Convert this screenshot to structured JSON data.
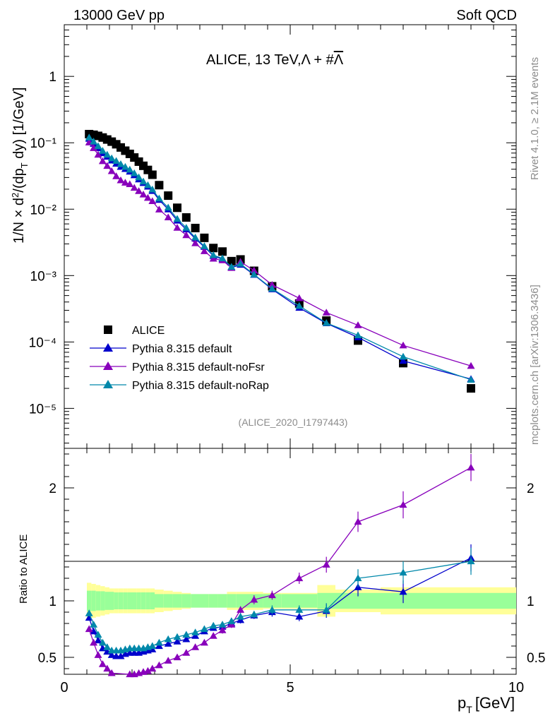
{
  "header": {
    "left": "13000 GeV pp",
    "right": "Soft QCD"
  },
  "side_text": {
    "rivet": "Rivet 4.1.0, ≥ 2.1M events",
    "mcplots": "mcplots.cern.ch [arXiv:1306.3436]"
  },
  "chart_data": {
    "type": "scatter",
    "title": "ALICE, 13 TeV,Λ + #Λ̅",
    "title_plain": "ALICE, 13 TeV,Λ + #",
    "title_bar": "Λ",
    "analysis": "(ALICE_2020_I1797443)",
    "xlabel": "p",
    "xlabel_sub": "T",
    "xlabel_unit": "[GeV]",
    "ylabel": "1/N × d²/(dp_T dy) [1/GeV]",
    "ratio_ylabel": "Ratio to ALICE",
    "xlim": [
      0,
      10
    ],
    "ylim": [
      2.5e-06,
      6
    ],
    "ratio_ylim": [
      0.35,
      2.35
    ],
    "x_ticks": [
      "0",
      "5",
      "10"
    ],
    "y_ticks": [
      "1",
      "10⁻¹",
      "10⁻²",
      "10⁻³",
      "10⁻⁴",
      "10⁻⁵"
    ],
    "ratio_ticks": [
      "0.5",
      "1",
      "2"
    ],
    "x": [
      0.55,
      0.65,
      0.75,
      0.85,
      0.95,
      1.05,
      1.15,
      1.25,
      1.35,
      1.45,
      1.55,
      1.65,
      1.75,
      1.85,
      1.95,
      2.1,
      2.3,
      2.5,
      2.7,
      2.9,
      3.1,
      3.3,
      3.5,
      3.7,
      3.9,
      4.2,
      4.6,
      5.2,
      5.8,
      6.5,
      7.5,
      9.0
    ],
    "x_err": [
      0.05,
      0.05,
      0.05,
      0.05,
      0.05,
      0.05,
      0.05,
      0.05,
      0.05,
      0.05,
      0.05,
      0.05,
      0.05,
      0.05,
      0.05,
      0.1,
      0.1,
      0.1,
      0.1,
      0.1,
      0.1,
      0.1,
      0.1,
      0.1,
      0.1,
      0.2,
      0.2,
      0.4,
      0.2,
      0.5,
      0.5,
      1.0
    ],
    "data_values": [
      0.135,
      0.132,
      0.127,
      0.12,
      0.112,
      0.104,
      0.095,
      0.085,
      0.076,
      0.068,
      0.06,
      0.052,
      0.045,
      0.039,
      0.033,
      0.023,
      0.016,
      0.0105,
      0.0075,
      0.0052,
      0.0037,
      0.0026,
      0.0023,
      0.00165,
      0.00175,
      0.00118,
      0.00069,
      0.00038,
      0.00021,
      0.000105,
      4.8e-05,
      2e-05
    ],
    "band_inner": [
      0.09,
      0.09,
      0.085,
      0.085,
      0.08,
      0.08,
      0.075,
      0.075,
      0.075,
      0.075,
      0.075,
      0.075,
      0.075,
      0.075,
      0.075,
      0.06,
      0.06,
      0.06,
      0.06,
      0.06,
      0.06,
      0.06,
      0.06,
      0.06,
      0.06,
      0.06,
      0.06,
      0.06,
      0.07,
      0.07,
      0.07,
      0.07
    ],
    "band_outer": [
      0.16,
      0.15,
      0.14,
      0.13,
      0.12,
      0.11,
      0.11,
      0.11,
      0.11,
      0.11,
      0.11,
      0.11,
      0.11,
      0.11,
      0.11,
      0.1,
      0.09,
      0.08,
      0.07,
      0.06,
      0.06,
      0.06,
      0.06,
      0.08,
      0.08,
      0.08,
      0.07,
      0.07,
      0.14,
      0.1,
      0.12,
      0.12
    ],
    "series": [
      {
        "name": "ALICE",
        "color": "#000000",
        "marker": "square",
        "values": []
      },
      {
        "name": "Pythia 8.315 default",
        "color": "#0000cc",
        "marker": "triangle",
        "ratio": [
          0.85,
          0.73,
          0.65,
          0.58,
          0.55,
          0.52,
          0.51,
          0.51,
          0.53,
          0.54,
          0.54,
          0.54,
          0.55,
          0.56,
          0.57,
          0.6,
          0.62,
          0.64,
          0.66,
          0.69,
          0.73,
          0.76,
          0.77,
          0.8,
          0.83,
          0.87,
          0.9,
          0.86,
          0.91,
          1.12,
          1.08,
          1.38
        ],
        "ratio_err": [
          0.02,
          0.02,
          0.02,
          0.02,
          0.02,
          0.02,
          0.02,
          0.02,
          0.02,
          0.02,
          0.02,
          0.02,
          0.02,
          0.02,
          0.02,
          0.02,
          0.02,
          0.02,
          0.02,
          0.02,
          0.02,
          0.02,
          0.02,
          0.03,
          0.03,
          0.03,
          0.04,
          0.04,
          0.06,
          0.08,
          0.1,
          0.12
        ]
      },
      {
        "name": "Pythia 8.315 default-noFsr",
        "color": "#8800bb",
        "marker": "triangle",
        "ratio": [
          0.75,
          0.63,
          0.52,
          0.44,
          0.4,
          0.36,
          0.33,
          0.32,
          0.33,
          0.35,
          0.35,
          0.36,
          0.37,
          0.38,
          0.4,
          0.43,
          0.47,
          0.5,
          0.54,
          0.59,
          0.63,
          0.69,
          0.74,
          0.79,
          0.92,
          1.01,
          1.05,
          1.2,
          1.32,
          1.7,
          1.85,
          2.18
        ],
        "ratio_err": [
          0.02,
          0.02,
          0.02,
          0.02,
          0.02,
          0.02,
          0.02,
          0.02,
          0.02,
          0.02,
          0.02,
          0.02,
          0.02,
          0.02,
          0.02,
          0.02,
          0.02,
          0.02,
          0.02,
          0.02,
          0.02,
          0.02,
          0.03,
          0.03,
          0.03,
          0.04,
          0.04,
          0.05,
          0.07,
          0.09,
          0.12,
          0.12
        ]
      },
      {
        "name": "Pythia 8.315 default-noRap",
        "color": "#0088aa",
        "marker": "triangle",
        "ratio": [
          0.89,
          0.79,
          0.7,
          0.63,
          0.59,
          0.56,
          0.56,
          0.56,
          0.57,
          0.58,
          0.58,
          0.58,
          0.58,
          0.59,
          0.6,
          0.63,
          0.66,
          0.68,
          0.7,
          0.72,
          0.75,
          0.78,
          0.79,
          0.82,
          0.86,
          0.88,
          0.92,
          0.92,
          0.92,
          1.2,
          1.25,
          1.35
        ],
        "ratio_err": [
          0.02,
          0.02,
          0.02,
          0.02,
          0.02,
          0.02,
          0.02,
          0.02,
          0.02,
          0.02,
          0.02,
          0.02,
          0.02,
          0.02,
          0.02,
          0.02,
          0.02,
          0.02,
          0.02,
          0.02,
          0.02,
          0.02,
          0.02,
          0.03,
          0.03,
          0.03,
          0.04,
          0.04,
          0.06,
          0.08,
          0.1,
          0.12
        ]
      }
    ],
    "legend_position": "lower-left"
  }
}
